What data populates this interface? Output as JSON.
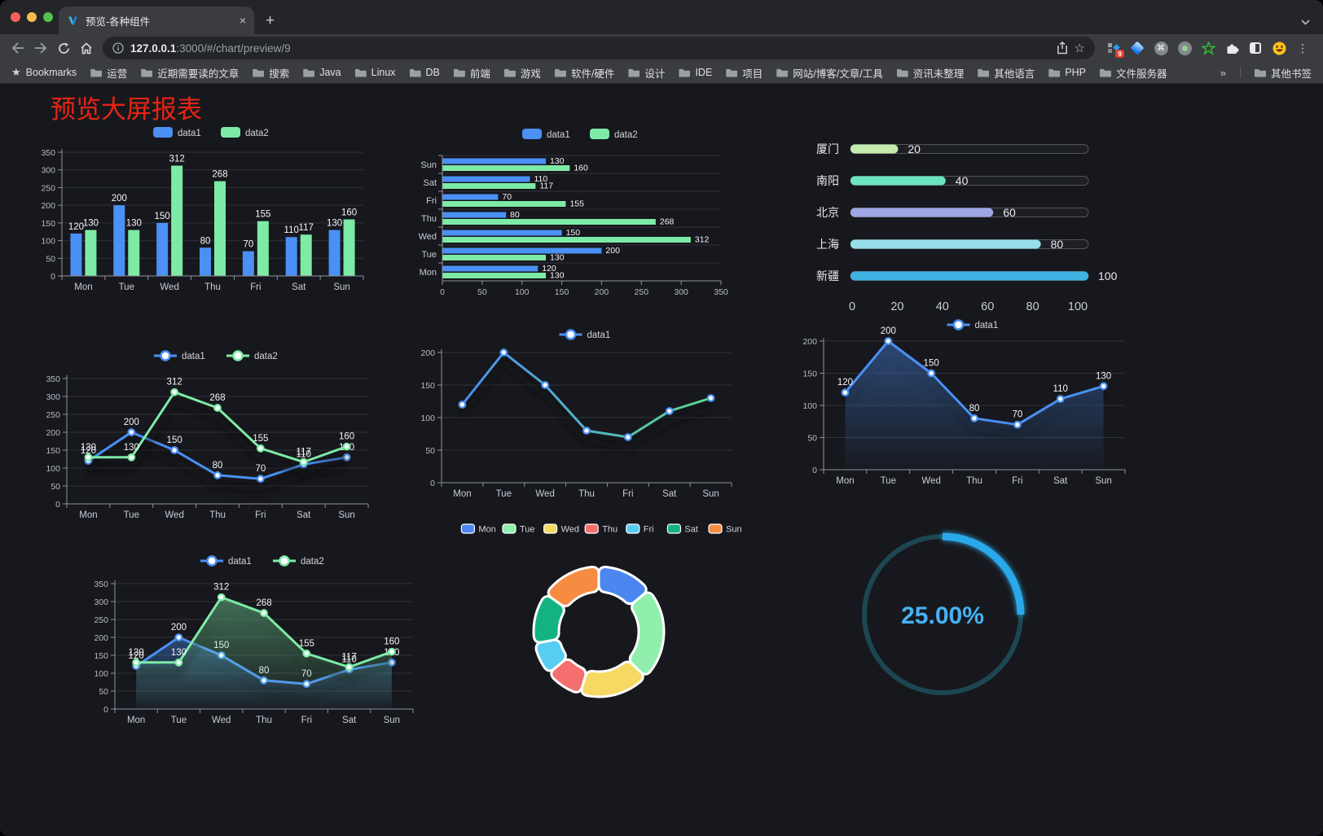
{
  "browser": {
    "tab_title": "预览-各种组件",
    "url": {
      "host": "127.0.0.1",
      "rest": ":3000/#/chart/preview/9"
    },
    "bookmarks_label": "Bookmarks",
    "bookmarks": [
      "运营",
      "近期需要读的文章",
      "搜索",
      "Java",
      "Linux",
      "DB",
      "前端",
      "游戏",
      "软件/硬件",
      "设计",
      "IDE",
      "项目",
      "网站/博客/文章/工具",
      "资讯未整理",
      "其他语言",
      "PHP",
      "文件服务器"
    ],
    "bookmarks_overflow": "»",
    "other_bookmarks": "其他书签",
    "extension_badge": "9"
  },
  "page": {
    "title": "预览大屏报表",
    "title_color": "#e82412"
  },
  "theme": {
    "page_bg": "#17181d",
    "grid": "#30323a",
    "axis_line": "#8f929b",
    "axis_text": "#b8bac4",
    "cat_text": "#c9ccd6",
    "value_label": "#f4f5f7",
    "legend_text": "#d2d4da",
    "data1": "#4a90f5",
    "data2": "#7deba6"
  },
  "chart_data": [
    {
      "type": "bar",
      "categories": [
        "Mon",
        "Tue",
        "Wed",
        "Thu",
        "Fri",
        "Sat",
        "Sun"
      ],
      "series": [
        {
          "name": "data1",
          "color": "#4a90f5",
          "values": [
            120,
            200,
            150,
            80,
            70,
            110,
            130
          ]
        },
        {
          "name": "data2",
          "color": "#7deba6",
          "values": [
            130,
            130,
            312,
            268,
            155,
            117,
            160
          ]
        }
      ],
      "ylim": [
        0,
        350
      ],
      "ytick_step": 50
    },
    {
      "type": "hbar",
      "categories": [
        "Mon",
        "Tue",
        "Wed",
        "Thu",
        "Fri",
        "Sat",
        "Sun"
      ],
      "series": [
        {
          "name": "data1",
          "color": "#4a90f5",
          "values": [
            120,
            200,
            150,
            80,
            70,
            110,
            130
          ]
        },
        {
          "name": "data2",
          "color": "#7deba6",
          "values": [
            130,
            130,
            312,
            268,
            155,
            117,
            160
          ]
        }
      ],
      "xlim": [
        0,
        350
      ],
      "xtick_step": 50
    },
    {
      "type": "progress",
      "max": 100,
      "xticks": [
        0,
        20,
        40,
        60,
        80,
        100
      ],
      "items": [
        {
          "label": "厦门",
          "value": 20,
          "color": "#c4ebad"
        },
        {
          "label": "南阳",
          "value": 40,
          "color": "#6be6c1"
        },
        {
          "label": "北京",
          "value": 60,
          "color": "#a0a7e6"
        },
        {
          "label": "上海",
          "value": 80,
          "color": "#96dee8"
        },
        {
          "label": "新疆",
          "value": 100,
          "color": "#3fb1e3"
        }
      ]
    },
    {
      "type": "line",
      "show_labels": true,
      "categories": [
        "Mon",
        "Tue",
        "Wed",
        "Thu",
        "Fri",
        "Sat",
        "Sun"
      ],
      "series": [
        {
          "name": "data1",
          "color": "#4a90f5",
          "values": [
            120,
            200,
            150,
            80,
            70,
            110,
            130
          ]
        },
        {
          "name": "data2",
          "color": "#7deba6",
          "values": [
            130,
            130,
            312,
            268,
            155,
            117,
            160
          ]
        }
      ],
      "ylim": [
        0,
        350
      ],
      "ytick_step": 50
    },
    {
      "type": "line",
      "show_labels": false,
      "gradient_stroke": true,
      "categories": [
        "Mon",
        "Tue",
        "Wed",
        "Thu",
        "Fri",
        "Sat",
        "Sun"
      ],
      "series": [
        {
          "name": "data1",
          "color": "#4a90f5",
          "color_end": "#57d98f",
          "values": [
            120,
            200,
            150,
            80,
            70,
            110,
            130
          ]
        }
      ],
      "ylim": [
        0,
        200
      ],
      "ytick_step": 50
    },
    {
      "type": "area",
      "show_labels": true,
      "categories": [
        "Mon",
        "Tue",
        "Wed",
        "Thu",
        "Fri",
        "Sat",
        "Sun"
      ],
      "series": [
        {
          "name": "data1",
          "color": "#4a90f5",
          "values": [
            120,
            200,
            150,
            80,
            70,
            110,
            130
          ]
        }
      ],
      "ylim": [
        0,
        200
      ],
      "ytick_step": 50
    },
    {
      "type": "area",
      "show_labels": true,
      "categories": [
        "Mon",
        "Tue",
        "Wed",
        "Thu",
        "Fri",
        "Sat",
        "Sun"
      ],
      "series": [
        {
          "name": "data1",
          "color": "#4a90f5",
          "values": [
            120,
            200,
            150,
            80,
            70,
            110,
            130
          ]
        },
        {
          "name": "data2",
          "color": "#7deba6",
          "values": [
            130,
            130,
            312,
            268,
            155,
            117,
            160
          ]
        }
      ],
      "ylim": [
        0,
        350
      ],
      "ytick_step": 50
    },
    {
      "type": "pie",
      "items": [
        {
          "label": "Mon",
          "value": 120,
          "color": "#4c87ef"
        },
        {
          "label": "Tue",
          "value": 200,
          "color": "#90efad"
        },
        {
          "label": "Wed",
          "value": 150,
          "color": "#f5d962"
        },
        {
          "label": "Thu",
          "value": 80,
          "color": "#f66f6f"
        },
        {
          "label": "Fri",
          "value": 70,
          "color": "#57cdf2"
        },
        {
          "label": "Sat",
          "value": 110,
          "color": "#12b380"
        },
        {
          "label": "Sun",
          "value": 130,
          "color": "#f68c42"
        }
      ]
    },
    {
      "type": "gauge",
      "percent": 25,
      "label": "25.00%",
      "color": "#2aa9ea",
      "track_color": "#1c4752",
      "text_color": "#45b2f4"
    }
  ]
}
